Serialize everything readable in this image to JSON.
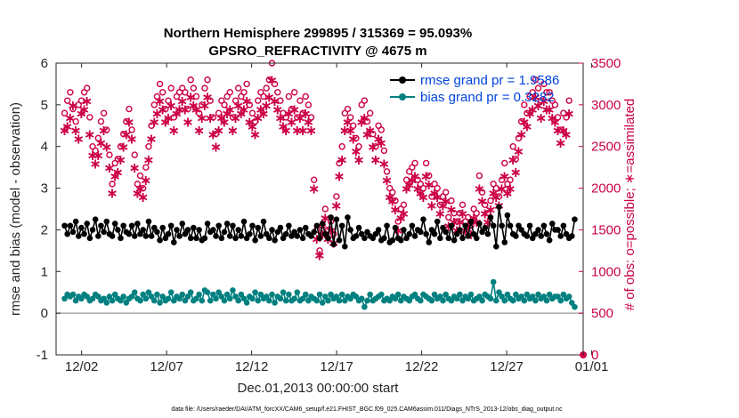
{
  "chart_data": {
    "type": "line",
    "title": "Northern Hemisphere 299895 / 315369 = 95.093%",
    "subtitle": "GPSRO_REFRACTIVITY @ 4675 m",
    "xlabel": "Dec.01,2013 00:00:00 start",
    "ylabel": "rmse and bias (model - observation)",
    "y2label": "# of obs: o=possible; ∗=assimilated",
    "footer": "data file: /Users/raeder/DAI/ATM_forcXX/CAM6_setup/f.e21.FHIST_BGC.f09_025.CAM6assim.011/Diags_NTrS_2013-12/obs_diag_output.nc",
    "xlim": [
      0.5,
      31.5
    ],
    "ylim": [
      -1,
      6
    ],
    "y2lim": [
      0,
      3500
    ],
    "xticks": [
      2,
      7,
      12,
      17,
      22,
      27,
      32
    ],
    "xticklabels": [
      "12/02",
      "12/07",
      "12/12",
      "12/17",
      "12/22",
      "12/27",
      "01/01"
    ],
    "yticks": [
      -1,
      0,
      1,
      2,
      3,
      4,
      5,
      6
    ],
    "y2ticks": [
      0,
      500,
      1000,
      1500,
      2000,
      2500,
      3000,
      3500
    ],
    "legend": [
      {
        "label": "rmse grand pr = 1.9586",
        "color": "#000000"
      },
      {
        "label": "bias grand pr = 0.3282",
        "color": "#008080"
      }
    ],
    "legend_position": "top-right",
    "colors": {
      "rmse": "#000000",
      "bias": "#008080",
      "obs": "#cc0044",
      "zero": "#aaaaaa"
    },
    "series": [
      {
        "name": "rmse",
        "values": [
          2.1,
          1.9,
          2.1,
          1.95,
          2.2,
          1.85,
          2.05,
          1.9,
          2.15,
          1.8,
          2.0,
          2.25,
          1.85,
          2.1,
          1.95,
          2.2,
          1.9,
          1.85,
          2.15,
          2.0,
          1.8,
          2.1,
          1.95,
          1.9,
          2.1,
          1.85,
          2.15,
          1.9,
          2.0,
          1.85,
          2.2,
          1.85,
          2.05,
          1.95,
          1.75,
          2.05,
          1.8,
          1.9,
          2.1,
          1.7,
          2.0,
          1.85,
          2.15,
          1.9,
          2.0,
          1.8,
          2.05,
          1.8,
          2.0,
          1.75,
          1.8,
          2.15,
          1.95,
          2.0,
          1.85,
          2.1,
          1.8,
          1.95,
          2.15,
          1.85,
          2.1,
          1.8,
          2.0,
          1.85,
          2.2,
          1.8,
          1.9,
          2.1,
          1.75,
          2.05,
          1.85,
          2.2,
          1.9,
          1.8,
          2.0,
          1.75,
          1.95,
          2.05,
          1.8,
          1.9,
          2.1,
          1.85,
          1.95,
          1.85,
          2.0,
          1.8,
          2.05,
          1.9,
          1.85,
          1.95,
          2.1,
          1.8,
          2.15,
          1.9,
          1.8,
          2.3,
          1.65,
          2.25,
          1.75,
          2.1,
          1.6,
          2.3,
          2.0,
          1.8,
          1.85,
          2.05,
          1.9,
          1.8,
          1.95,
          1.85,
          1.8,
          1.9,
          2.0,
          1.75,
          1.8,
          2.1,
          1.7,
          1.75,
          2.05,
          1.8,
          1.75,
          2.0,
          1.8,
          1.9,
          2.1,
          1.85,
          2.0,
          1.95,
          2.25,
          1.9,
          1.7,
          2.0,
          1.9,
          2.2,
          1.8,
          2.05,
          1.95,
          1.8,
          2.1,
          1.75,
          1.9,
          2.0,
          1.8,
          2.1,
          1.85,
          2.2,
          1.9,
          1.8,
          2.15,
          1.95,
          2.05,
          1.9,
          2.3,
          2.1,
          1.6,
          2.55,
          2.1,
          1.7,
          2.35,
          2.1,
          1.9,
          1.85,
          2.1,
          2.0,
          1.9,
          1.85,
          2.1,
          1.8,
          1.9,
          2.0,
          1.85,
          2.1,
          1.9,
          1.75,
          2.15,
          2.0,
          2.0,
          1.85,
          2.1,
          1.9,
          1.8,
          1.85,
          2.25
        ]
      },
      {
        "name": "bias",
        "values": [
          0.35,
          0.45,
          0.4,
          0.45,
          0.3,
          0.4,
          0.35,
          0.45,
          0.4,
          0.3,
          0.35,
          0.45,
          0.4,
          0.3,
          0.35,
          0.25,
          0.4,
          0.3,
          0.45,
          0.35,
          0.3,
          0.4,
          0.25,
          0.35,
          0.4,
          0.5,
          0.35,
          0.3,
          0.45,
          0.35,
          0.5,
          0.4,
          0.3,
          0.45,
          0.25,
          0.4,
          0.3,
          0.35,
          0.5,
          0.3,
          0.4,
          0.35,
          0.45,
          0.3,
          0.4,
          0.5,
          0.3,
          0.35,
          0.45,
          0.3,
          0.55,
          0.5,
          0.3,
          0.45,
          0.35,
          0.5,
          0.4,
          0.3,
          0.45,
          0.35,
          0.55,
          0.4,
          0.3,
          0.45,
          0.35,
          0.25,
          0.4,
          0.35,
          0.5,
          0.3,
          0.45,
          0.35,
          0.4,
          0.3,
          0.45,
          0.25,
          0.4,
          0.35,
          0.5,
          0.3,
          0.45,
          0.3,
          0.35,
          0.5,
          0.3,
          0.35,
          0.45,
          0.3,
          0.4,
          0.35,
          0.3,
          0.45,
          0.25,
          0.4,
          0.3,
          0.45,
          0.35,
          0.4,
          0.3,
          0.45,
          0.3,
          0.4,
          0.35,
          0.45,
          0.4,
          0.3,
          0.35,
          0.15,
          0.3,
          0.45,
          0.3,
          0.35,
          0.4,
          0.45,
          0.3,
          0.35,
          0.3,
          0.4,
          0.35,
          0.45,
          0.3,
          0.4,
          0.35,
          0.3,
          0.4,
          0.45,
          0.35,
          0.3,
          0.45,
          0.4,
          0.35,
          0.3,
          0.45,
          0.35,
          0.4,
          0.3,
          0.45,
          0.35,
          0.3,
          0.4,
          0.35,
          0.45,
          0.3,
          0.4,
          0.35,
          0.45,
          0.3,
          0.35,
          0.4,
          0.3,
          0.45,
          0.4,
          0.35,
          0.75,
          0.3,
          0.5,
          0.4,
          0.3,
          0.45,
          0.35,
          0.3,
          0.45,
          0.35,
          0.4,
          0.3,
          0.45,
          0.35,
          0.4,
          0.3,
          0.45,
          0.35,
          0.4,
          0.3,
          0.45,
          0.35,
          0.4,
          0.4,
          0.3,
          0.45,
          0.35,
          0.4,
          0.25,
          0.15
        ]
      },
      {
        "name": "possible",
        "values": [
          2900,
          3050,
          3150,
          2950,
          2800,
          3000,
          3050,
          3150,
          3200,
          2850,
          2500,
          2450,
          2600,
          2800,
          2900,
          2700,
          2400,
          2050,
          2300,
          2350,
          2500,
          2650,
          2800,
          2950,
          2700,
          2400,
          2050,
          2150,
          2000,
          2250,
          2500,
          2750,
          3000,
          3100,
          3250,
          3150,
          2950,
          3050,
          3200,
          2850,
          3100,
          3150,
          3200,
          3150,
          2950,
          3300,
          3200,
          3100,
          2900,
          3000,
          3200,
          3300,
          3050,
          2850,
          2650,
          2900,
          3050,
          3000,
          3100,
          3150,
          2850,
          3050,
          3200,
          3100,
          3150,
          3250,
          3000,
          2900,
          2800,
          3050,
          3150,
          3100,
          3200,
          3300,
          3500,
          3250,
          3150,
          3050,
          2900,
          2850,
          3100,
          2950,
          3150,
          2850,
          3050,
          2900,
          3100,
          3000,
          2850,
          2100,
          1500,
          1250,
          1550,
          1750,
          1500,
          1600,
          1450,
          1900,
          2300,
          2500,
          2900,
          2950,
          2850,
          2750,
          2600,
          2500,
          3000,
          3050,
          2800,
          2900,
          2650,
          2500,
          2750,
          2700,
          2450,
          2200,
          2000,
          1950,
          1850,
          1600,
          1750,
          1800,
          2100,
          2200,
          2250,
          2300,
          2100,
          2050,
          2000,
          2300,
          2150,
          1900,
          2050,
          2000,
          1800,
          1900,
          1950,
          1650,
          1850,
          1700,
          1600,
          1700,
          1800,
          1600,
          1650,
          1550,
          1750,
          1700,
          2150,
          1950,
          1800,
          1700,
          1850,
          2050,
          2000,
          1900,
          2100,
          2300,
          2050,
          2100,
          2500,
          2350,
          2600,
          2800,
          3000,
          2900,
          3100,
          3150,
          3300,
          3200,
          3050,
          3250,
          3150,
          3150,
          3050,
          3000,
          2850,
          2700,
          2900,
          2850,
          3050
        ]
      },
      {
        "name": "assimilated",
        "values": [
          2700,
          2750,
          2850,
          3000,
          2700,
          2600,
          2900,
          2950,
          3050,
          2650,
          2400,
          2300,
          2400,
          2550,
          2700,
          2500,
          2250,
          1950,
          2150,
          2200,
          2350,
          2500,
          2650,
          2800,
          2600,
          2250,
          1950,
          2000,
          1900,
          2100,
          2350,
          2600,
          2800,
          2900,
          3050,
          2950,
          2800,
          2850,
          3000,
          2700,
          2900,
          2950,
          3050,
          2950,
          2800,
          3100,
          3000,
          2950,
          2700,
          2850,
          3000,
          3100,
          2850,
          2650,
          2500,
          2700,
          2850,
          2800,
          2900,
          2950,
          2700,
          2850,
          3000,
          2900,
          2950,
          3050,
          2800,
          2750,
          2650,
          2850,
          2950,
          2900,
          3000,
          3100,
          3300,
          3050,
          2950,
          2850,
          2750,
          2700,
          2900,
          2800,
          2950,
          2700,
          2850,
          2700,
          2900,
          2800,
          2700,
          2000,
          1400,
          1200,
          1450,
          1650,
          1400,
          1500,
          1350,
          1800,
          2150,
          2350,
          2700,
          2800,
          2700,
          2600,
          2450,
          2350,
          2800,
          2850,
          2650,
          2700,
          2500,
          2350,
          2600,
          2550,
          2300,
          2100,
          1900,
          1850,
          1750,
          1500,
          1650,
          1700,
          2000,
          2050,
          2100,
          2150,
          2000,
          1950,
          1900,
          2150,
          2050,
          1800,
          1950,
          1900,
          1700,
          1800,
          1850,
          1550,
          1750,
          1600,
          1500,
          1600,
          1700,
          1500,
          1550,
          1450,
          1650,
          1600,
          2000,
          1850,
          1700,
          1600,
          1750,
          1950,
          1900,
          1800,
          2000,
          2150,
          1950,
          2000,
          2350,
          2200,
          2450,
          2650,
          2800,
          2750,
          2900,
          2950,
          3100,
          3000,
          2850,
          3050,
          2950,
          2950,
          2850,
          2800,
          2700,
          2550,
          2700,
          2650,
          2900
        ]
      }
    ]
  }
}
